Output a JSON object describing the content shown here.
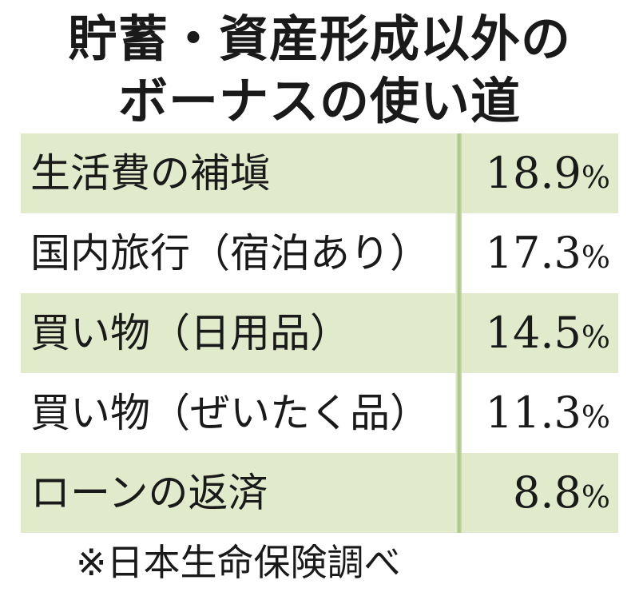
{
  "chart_data": {
    "type": "table",
    "title_lines": [
      "貯蓄・資産形成以外の",
      "ボーナスの使い道"
    ],
    "unit": "%",
    "rows": [
      {
        "label": "生活費の補塡",
        "value": "18.9",
        "shaded": true
      },
      {
        "label": "国内旅行（宿泊あり）",
        "value": "17.3",
        "shaded": false
      },
      {
        "label": "買い物（日用品）",
        "value": "14.5",
        "shaded": true
      },
      {
        "label": "買い物（ぜいたく品）",
        "value": "11.3",
        "shaded": false
      },
      {
        "label": "ローンの返済",
        "value": "8.8",
        "shaded": true
      }
    ],
    "source": "※日本生命保険調べ"
  },
  "colors": {
    "row_shade": "#e1ebcb",
    "divider": "#a6c47f",
    "text": "#1a1a1a"
  }
}
